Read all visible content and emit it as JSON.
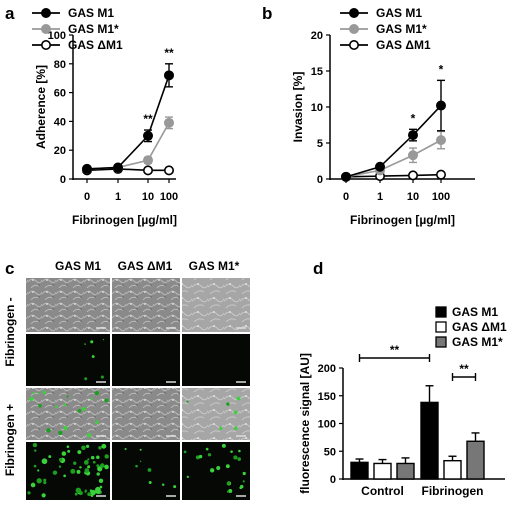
{
  "panels": {
    "a": "a",
    "b": "b",
    "c": "c",
    "d": "d"
  },
  "chart_data": [
    {
      "panel": "a",
      "type": "line",
      "categories": [
        "0",
        "1",
        "10",
        "100"
      ],
      "ylabel": "Adherence [%]",
      "xlabel": "Fibrinogen [µg/ml]",
      "ylim": [
        0,
        100
      ],
      "yticks": [
        "0",
        "20",
        "40",
        "60",
        "80",
        "100"
      ],
      "series": [
        {
          "name": "GAS M1",
          "values": [
            7,
            8,
            30,
            72
          ],
          "errors": [
            1,
            1,
            4,
            8
          ],
          "color": "#000000",
          "marker": "filled"
        },
        {
          "name": "GAS M1*",
          "values": [
            7,
            8,
            13,
            39
          ],
          "errors": [
            1,
            1,
            2,
            4
          ],
          "color": "#999999",
          "marker": "filled"
        },
        {
          "name": "GAS ΔM1",
          "values": [
            6,
            7,
            6,
            6
          ],
          "errors": [
            1,
            1,
            1,
            1
          ],
          "color": "#000000",
          "marker": "open"
        }
      ],
      "annotations": [
        {
          "category": "10",
          "text": "**"
        },
        {
          "category": "100",
          "text": "**"
        }
      ]
    },
    {
      "panel": "b",
      "type": "line",
      "categories": [
        "0",
        "1",
        "10",
        "100"
      ],
      "ylabel": "Invasion [%]",
      "xlabel": "Fibrinogen [µg/ml]",
      "ylim": [
        0,
        20
      ],
      "yticks": [
        "0",
        "5",
        "10",
        "15",
        "20"
      ],
      "series": [
        {
          "name": "GAS M1",
          "values": [
            0.3,
            1.7,
            6.1,
            10.2
          ],
          "errors": [
            0.1,
            0.3,
            0.8,
            3.5
          ],
          "color": "#000000",
          "marker": "filled"
        },
        {
          "name": "GAS M1*",
          "values": [
            0.3,
            1.2,
            3.3,
            5.4
          ],
          "errors": [
            0.1,
            0.3,
            1.0,
            1.2
          ],
          "color": "#999999",
          "marker": "filled"
        },
        {
          "name": "GAS ΔM1",
          "values": [
            0.3,
            0.4,
            0.5,
            0.6
          ],
          "errors": [
            0.1,
            0.1,
            0.1,
            0.1
          ],
          "color": "#000000",
          "marker": "open"
        }
      ],
      "annotations": [
        {
          "category": "10",
          "text": "*"
        },
        {
          "category": "100",
          "text": "*"
        }
      ]
    },
    {
      "panel": "d",
      "type": "bar",
      "categories": [
        "Control",
        "Fibrinogen"
      ],
      "ylabel": "fluorescence signal [AU]",
      "ylim": [
        0,
        200
      ],
      "yticks": [
        "0",
        "50",
        "100",
        "150",
        "200"
      ],
      "series": [
        {
          "name": "GAS M1",
          "values": [
            30,
            138
          ],
          "errors": [
            6,
            30
          ],
          "color": "#000000"
        },
        {
          "name": "GAS ΔM1",
          "values": [
            28,
            33
          ],
          "errors": [
            7,
            8
          ],
          "color": "#ffffff"
        },
        {
          "name": "GAS M1*",
          "values": [
            28,
            68
          ],
          "errors": [
            10,
            15
          ],
          "color": "#777777"
        }
      ],
      "annotations": [
        {
          "text": "**",
          "from": [
            "Control",
            "GAS M1"
          ],
          "to": [
            "Fibrinogen",
            "GAS M1"
          ]
        },
        {
          "text": "**",
          "from": [
            "Fibrinogen",
            "GAS ΔM1"
          ],
          "to": [
            "Fibrinogen",
            "GAS M1*"
          ]
        }
      ]
    }
  ],
  "micrographs": {
    "columns": [
      "GAS M1",
      "GAS ΔM1",
      "GAS M1*"
    ],
    "rows": [
      "Fibrinogen -",
      "Fibrinogen +"
    ]
  }
}
